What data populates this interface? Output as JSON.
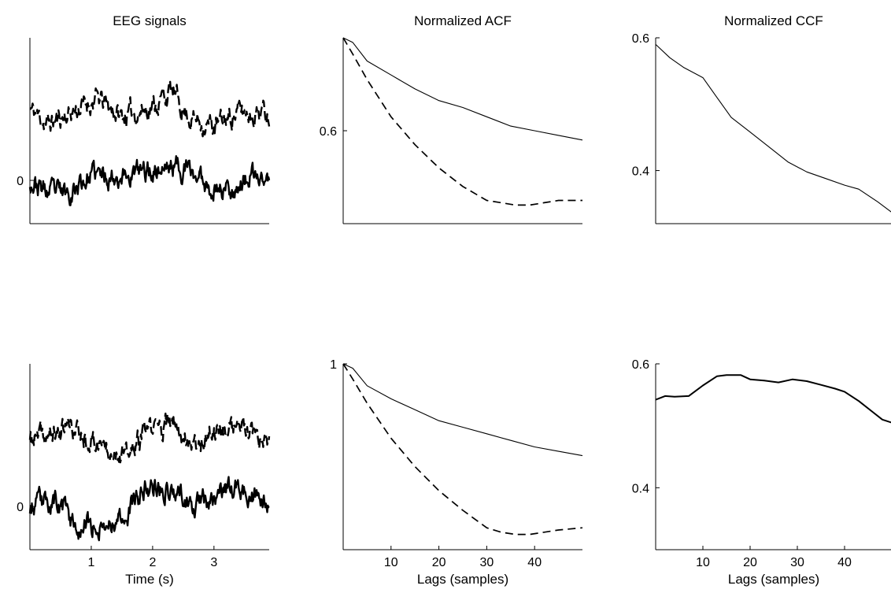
{
  "chart_data": [
    {
      "type": "line",
      "title": "EEG signals",
      "xlabel": "",
      "ylabel": "",
      "xlim": [
        0,
        3.9
      ],
      "ylim": [
        -0.85,
        2.8
      ],
      "xticks": [],
      "yticks": [
        0
      ],
      "series": [
        {
          "style": "dashed",
          "offset": 1.3,
          "seed": 11,
          "shape": [
            [
              0,
              0.1
            ],
            [
              0.3,
              -0.2
            ],
            [
              0.6,
              0.0
            ],
            [
              1.1,
              0.3
            ],
            [
              1.5,
              -0.05
            ],
            [
              2.0,
              0.15
            ],
            [
              2.3,
              0.45
            ],
            [
              2.6,
              -0.05
            ],
            [
              3.0,
              -0.25
            ],
            [
              3.4,
              0.05
            ],
            [
              3.9,
              0.05
            ]
          ]
        },
        {
          "style": "solid",
          "offset": 0.0,
          "seed": 23,
          "shape": [
            [
              0,
              0.0
            ],
            [
              0.3,
              -0.25
            ],
            [
              0.6,
              -0.25
            ],
            [
              1.0,
              0.1
            ],
            [
              1.5,
              0.1
            ],
            [
              2.0,
              0.2
            ],
            [
              2.4,
              0.3
            ],
            [
              2.7,
              0.1
            ],
            [
              3.0,
              -0.15
            ],
            [
              3.3,
              -0.15
            ],
            [
              3.6,
              0.05
            ],
            [
              3.9,
              0.0
            ]
          ]
        }
      ]
    },
    {
      "type": "line",
      "title": "Normalized ACF",
      "xlabel": "",
      "ylabel": "",
      "xlim": [
        0,
        50
      ],
      "ylim": [
        0.2,
        1.0
      ],
      "xticks": [],
      "yticks": [
        0.6
      ],
      "series": [
        {
          "style": "solid",
          "x": [
            0,
            2,
            5,
            10,
            15,
            20,
            25,
            30,
            35,
            40,
            45,
            50
          ],
          "y": [
            1.0,
            0.98,
            0.9,
            0.84,
            0.78,
            0.73,
            0.7,
            0.66,
            0.62,
            0.6,
            0.58,
            0.56
          ]
        },
        {
          "style": "dashed",
          "x": [
            0,
            2,
            5,
            10,
            15,
            20,
            25,
            30,
            33,
            36,
            39,
            42,
            45,
            50
          ],
          "y": [
            1.0,
            0.93,
            0.82,
            0.66,
            0.54,
            0.44,
            0.36,
            0.3,
            0.29,
            0.28,
            0.28,
            0.29,
            0.3,
            0.3
          ]
        }
      ]
    },
    {
      "type": "line",
      "title": "Normalized CCF",
      "xlabel": "",
      "ylabel": "",
      "xlim": [
        0,
        50
      ],
      "ylim": [
        0.32,
        0.6
      ],
      "xticks": [],
      "yticks": [
        0.4,
        0.6
      ],
      "series": [
        {
          "style": "solid",
          "x": [
            0,
            3,
            6,
            10,
            13,
            16,
            20,
            25,
            28,
            32,
            36,
            40,
            43,
            47,
            50
          ],
          "y": [
            0.59,
            0.57,
            0.555,
            0.54,
            0.51,
            0.48,
            0.458,
            0.43,
            0.413,
            0.398,
            0.388,
            0.378,
            0.372,
            0.353,
            0.337
          ]
        }
      ]
    },
    {
      "type": "line",
      "title": "",
      "xlabel": "Time (s)",
      "ylabel": "",
      "xlim": [
        0,
        3.9
      ],
      "ylim": [
        -0.85,
        2.8
      ],
      "xticks": [
        1,
        2,
        3
      ],
      "yticks": [
        0
      ],
      "series": [
        {
          "style": "dashed",
          "offset": 1.3,
          "seed": 37,
          "shape": [
            [
              0,
              0.0
            ],
            [
              0.4,
              0.1
            ],
            [
              0.6,
              0.3
            ],
            [
              1.0,
              0.0
            ],
            [
              1.4,
              -0.15
            ],
            [
              1.6,
              -0.35
            ],
            [
              1.9,
              0.2
            ],
            [
              2.3,
              0.3
            ],
            [
              2.7,
              -0.05
            ],
            [
              3.0,
              0.2
            ],
            [
              3.4,
              0.3
            ],
            [
              3.7,
              -0.05
            ],
            [
              3.9,
              -0.15
            ]
          ]
        },
        {
          "style": "solid",
          "offset": 0.0,
          "seed": 53,
          "shape": [
            [
              0,
              0.0
            ],
            [
              0.4,
              0.1
            ],
            [
              0.8,
              -0.4
            ],
            [
              1.3,
              -0.3
            ],
            [
              1.6,
              -0.1
            ],
            [
              1.9,
              0.4
            ],
            [
              2.3,
              0.35
            ],
            [
              2.7,
              0.05
            ],
            [
              3.2,
              0.3
            ],
            [
              3.4,
              0.35
            ],
            [
              3.7,
              0.1
            ],
            [
              3.9,
              -0.05
            ]
          ]
        }
      ]
    },
    {
      "type": "line",
      "title": "",
      "xlabel": "Lags (samples)",
      "ylabel": "",
      "xlim": [
        0,
        50
      ],
      "ylim": [
        0.15,
        1.0
      ],
      "xticks": [
        10,
        20,
        30,
        40
      ],
      "yticks": [
        1
      ],
      "series": [
        {
          "style": "solid",
          "x": [
            0,
            2,
            5,
            10,
            15,
            20,
            25,
            30,
            35,
            40,
            45,
            50
          ],
          "y": [
            1.0,
            0.98,
            0.9,
            0.84,
            0.79,
            0.74,
            0.71,
            0.68,
            0.65,
            0.62,
            0.6,
            0.58
          ]
        },
        {
          "style": "dashed",
          "x": [
            0,
            2,
            5,
            10,
            15,
            20,
            25,
            30,
            33,
            36,
            39,
            42,
            45,
            50
          ],
          "y": [
            1.0,
            0.93,
            0.82,
            0.66,
            0.53,
            0.42,
            0.33,
            0.25,
            0.23,
            0.22,
            0.22,
            0.23,
            0.24,
            0.25
          ]
        }
      ]
    },
    {
      "type": "line",
      "title": "",
      "xlabel": "Lags (samples)",
      "ylabel": "",
      "xlim": [
        0,
        50
      ],
      "ylim": [
        0.3,
        0.6
      ],
      "xticks": [
        10,
        20,
        30,
        40
      ],
      "yticks": [
        0.4,
        0.6
      ],
      "series": [
        {
          "style": "solid",
          "x": [
            0,
            2,
            4,
            7,
            10,
            13,
            15,
            18,
            20,
            23,
            26,
            29,
            32,
            35,
            38,
            40,
            43,
            46,
            48,
            50
          ],
          "y": [
            0.542,
            0.548,
            0.547,
            0.548,
            0.565,
            0.58,
            0.582,
            0.582,
            0.575,
            0.573,
            0.57,
            0.575,
            0.572,
            0.566,
            0.56,
            0.555,
            0.54,
            0.522,
            0.51,
            0.505
          ]
        }
      ]
    }
  ]
}
